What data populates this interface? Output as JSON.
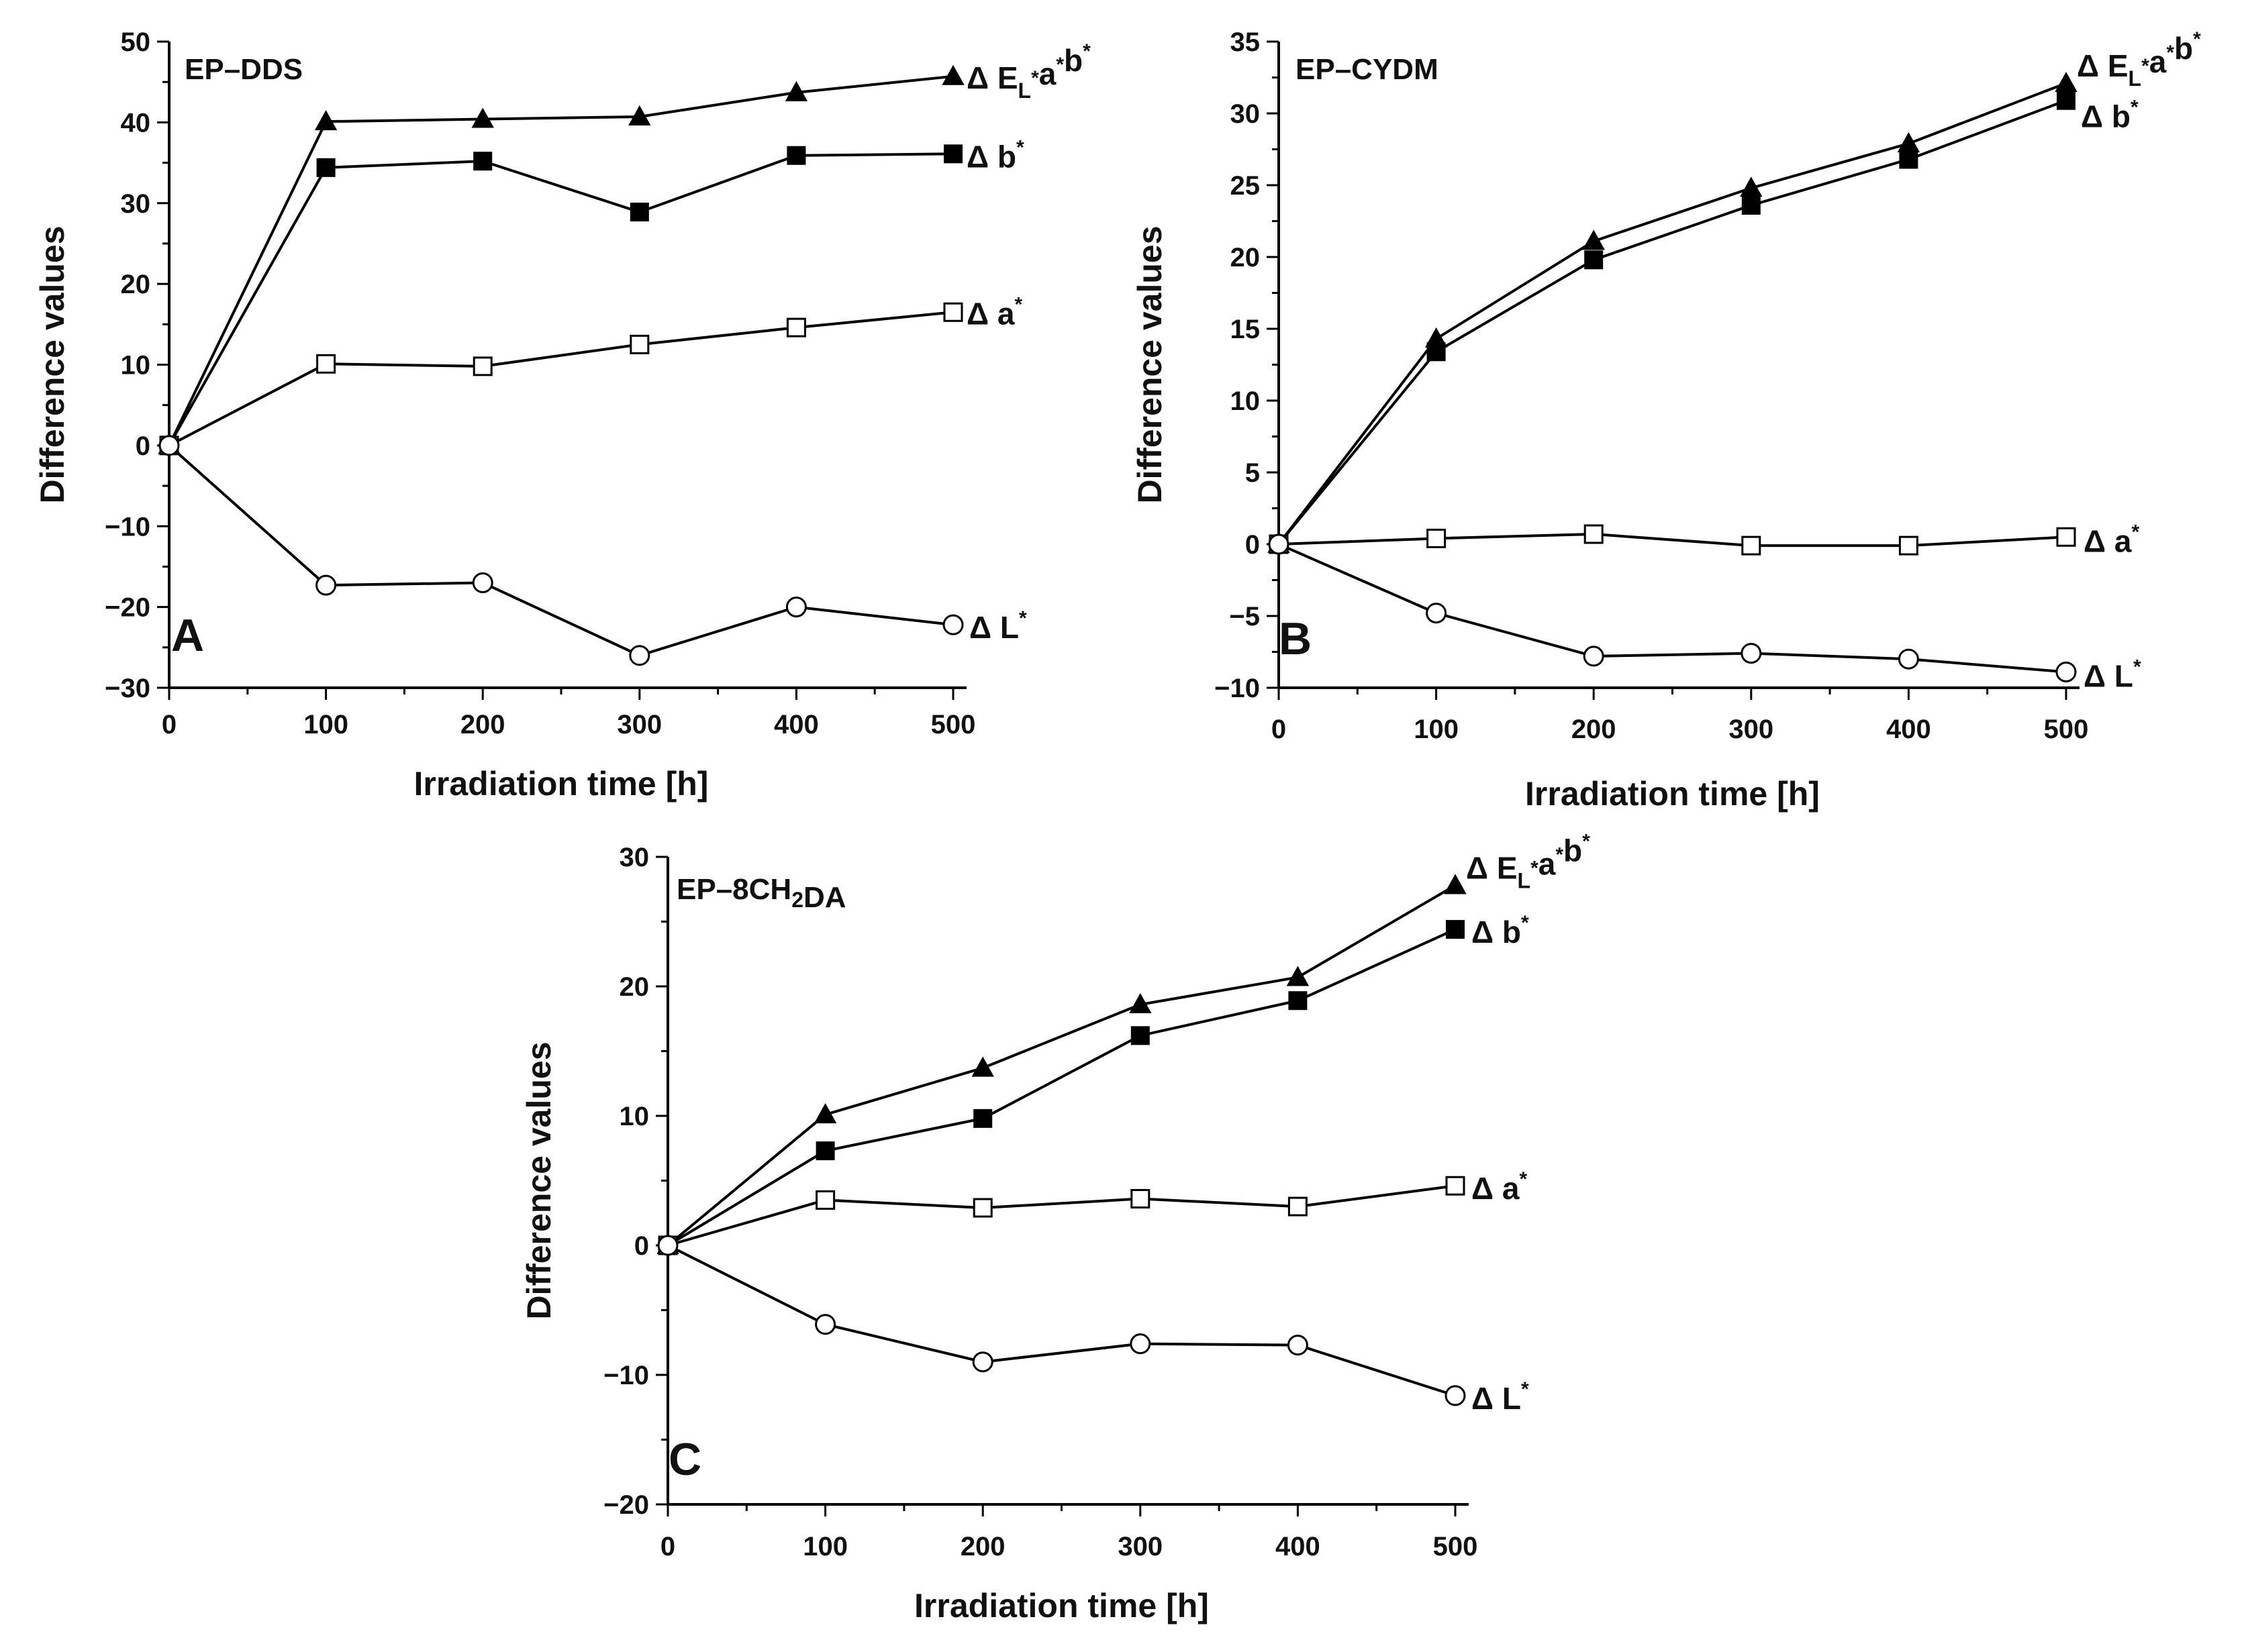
{
  "chart_data": [
    {
      "type": "line",
      "panel": "A",
      "title": "EP–DDS",
      "xlabel": "Irradiation time [h]",
      "ylabel": "Difference values",
      "xlim": [
        0,
        500
      ],
      "ylim": [
        -30,
        50
      ],
      "xticks": [
        0,
        100,
        200,
        300,
        400,
        500
      ],
      "yticks": [
        -30,
        -20,
        -10,
        0,
        10,
        20,
        30,
        40,
        50
      ],
      "x": [
        0,
        100,
        200,
        300,
        400,
        500
      ],
      "series": [
        {
          "name": "Δ EL*a*b*",
          "marker": "filled-triangle",
          "values": [
            0,
            40.1,
            40.4,
            40.7,
            43.7,
            45.7
          ]
        },
        {
          "name": "Δ b*",
          "marker": "filled-square",
          "values": [
            0,
            34.4,
            35.2,
            28.9,
            35.9,
            36.1
          ]
        },
        {
          "name": "Δ a*",
          "marker": "open-square",
          "values": [
            0,
            10.1,
            9.8,
            12.5,
            14.6,
            16.5
          ]
        },
        {
          "name": "Δ L*",
          "marker": "open-circle",
          "values": [
            0,
            -17.3,
            -17.0,
            -26.0,
            -20.0,
            -22.2
          ]
        }
      ]
    },
    {
      "type": "line",
      "panel": "B",
      "title": "EP–CYDM",
      "xlabel": "Irradiation time [h]",
      "ylabel": "Difference values",
      "xlim": [
        0,
        500
      ],
      "ylim": [
        -10,
        35
      ],
      "xticks": [
        0,
        100,
        200,
        300,
        400,
        500
      ],
      "yticks": [
        -10,
        -5,
        0,
        5,
        10,
        15,
        20,
        25,
        30,
        35
      ],
      "x": [
        0,
        100,
        200,
        300,
        400,
        500
      ],
      "series": [
        {
          "name": "Δ EL*a*b*",
          "marker": "filled-triangle",
          "values": [
            0,
            14.3,
            21.1,
            24.8,
            27.9,
            32.1
          ]
        },
        {
          "name": "Δ b*",
          "marker": "filled-square",
          "values": [
            0,
            13.4,
            19.8,
            23.6,
            26.8,
            30.9
          ]
        },
        {
          "name": "Δ a*",
          "marker": "open-square",
          "values": [
            0,
            0.4,
            0.7,
            -0.1,
            -0.1,
            0.5
          ]
        },
        {
          "name": "Δ L*",
          "marker": "open-circle",
          "values": [
            0,
            -4.8,
            -7.8,
            -7.6,
            -8.0,
            -8.9
          ]
        }
      ]
    },
    {
      "type": "line",
      "panel": "C",
      "title": "EP–8CH2DA",
      "xlabel": "Irradiation time [h]",
      "ylabel": "Difference values",
      "xlim": [
        0,
        500
      ],
      "ylim": [
        -20,
        30
      ],
      "xticks": [
        0,
        100,
        200,
        300,
        400,
        500
      ],
      "yticks": [
        -20,
        -10,
        0,
        10,
        20,
        30
      ],
      "x": [
        0,
        100,
        200,
        300,
        400,
        500
      ],
      "series": [
        {
          "name": "Δ EL*a*b*",
          "marker": "filled-triangle",
          "values": [
            0,
            10.1,
            13.7,
            18.6,
            20.7,
            27.8
          ]
        },
        {
          "name": "Δ b*",
          "marker": "filled-square",
          "values": [
            0,
            7.3,
            9.8,
            16.2,
            18.9,
            24.4
          ]
        },
        {
          "name": "Δ a*",
          "marker": "open-square",
          "values": [
            0,
            3.5,
            2.9,
            3.6,
            3.0,
            4.6
          ]
        },
        {
          "name": "Δ L*",
          "marker": "open-circle",
          "values": [
            0,
            -6.1,
            -9.0,
            -7.6,
            -7.7,
            -11.6
          ]
        }
      ]
    }
  ]
}
